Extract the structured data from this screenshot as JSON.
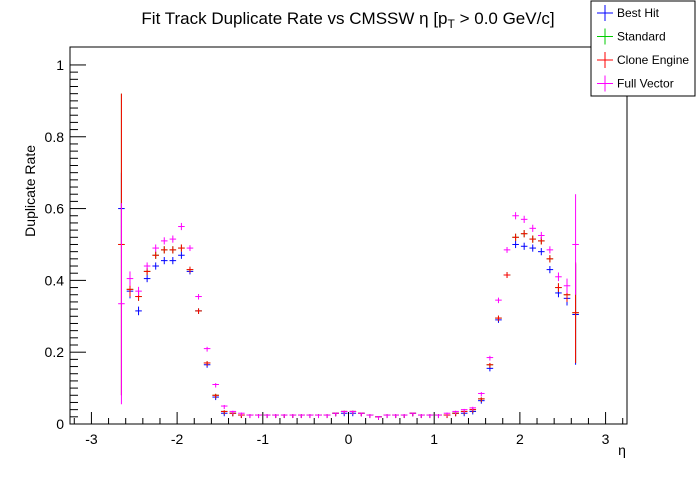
{
  "chart_data": {
    "type": "scatter",
    "title": {
      "prefix": "Fit Track Duplicate Rate vs CMSSW η [p",
      "subscript": "T",
      "suffix": " > 0.0 GeV/c]"
    },
    "xlabel": "η",
    "ylabel": "Duplicate Rate",
    "xlim": [
      -3.25,
      3.25
    ],
    "ylim": [
      0,
      1.05
    ],
    "xticks": [
      -3,
      -2,
      -1,
      0,
      1,
      2,
      3
    ],
    "yticks": [
      0,
      0.2,
      0.4,
      0.6,
      0.8,
      1
    ],
    "xtick_labels": [
      "-3",
      "-2",
      "-1",
      "0",
      "1",
      "2",
      "3"
    ],
    "ytick_labels": [
      "0",
      "0.2",
      "0.4",
      "0.6",
      "0.8",
      "1"
    ],
    "grid": false,
    "legend_position": "top-right",
    "bin_width": 0.1,
    "x": [
      -2.65,
      -2.55,
      -2.45,
      -2.35,
      -2.25,
      -2.15,
      -2.05,
      -1.95,
      -1.85,
      -1.75,
      -1.65,
      -1.55,
      -1.45,
      -1.35,
      -1.25,
      -1.15,
      -1.05,
      -0.95,
      -0.85,
      -0.75,
      -0.65,
      -0.55,
      -0.45,
      -0.35,
      -0.25,
      -0.15,
      -0.05,
      0.05,
      0.15,
      0.25,
      0.35,
      0.45,
      0.55,
      0.65,
      0.75,
      0.85,
      0.95,
      1.05,
      1.15,
      1.25,
      1.35,
      1.45,
      1.55,
      1.65,
      1.75,
      1.85,
      1.95,
      2.05,
      2.15,
      2.25,
      2.35,
      2.45,
      2.55,
      2.65
    ],
    "series": [
      {
        "name": "Best Hit",
        "color": "#0000ff",
        "values": [
          0.6,
          0.37,
          0.315,
          0.405,
          0.44,
          0.455,
          0.455,
          0.47,
          0.425,
          0.315,
          0.165,
          0.075,
          0.03,
          0.03,
          0.025,
          0.025,
          0.025,
          0.025,
          0.025,
          0.025,
          0.025,
          0.025,
          0.025,
          0.025,
          0.025,
          0.03,
          0.03,
          0.03,
          0.03,
          0.025,
          0.02,
          0.025,
          0.025,
          0.025,
          0.03,
          0.025,
          0.025,
          0.025,
          0.025,
          0.03,
          0.03,
          0.035,
          0.065,
          0.155,
          0.29,
          0.415,
          0.5,
          0.495,
          0.49,
          0.48,
          0.43,
          0.365,
          0.35,
          0.305
        ],
        "errors": [
          0.1,
          0.02,
          0.012,
          0.01,
          0.01,
          0.01,
          0.01,
          0.01,
          0.008,
          0.007,
          0.005,
          0.004,
          0.003,
          0.002,
          0.002,
          0.002,
          0.002,
          0.002,
          0.002,
          0.002,
          0.002,
          0.002,
          0.002,
          0.002,
          0.002,
          0.002,
          0.002,
          0.002,
          0.002,
          0.002,
          0.002,
          0.002,
          0.002,
          0.002,
          0.002,
          0.002,
          0.002,
          0.002,
          0.002,
          0.002,
          0.002,
          0.003,
          0.004,
          0.005,
          0.007,
          0.008,
          0.01,
          0.01,
          0.01,
          0.01,
          0.01,
          0.012,
          0.02,
          0.14
        ]
      },
      {
        "name": "Standard",
        "color": "#00cc00",
        "values": [
          0.5,
          0.375,
          0.355,
          0.425,
          0.47,
          0.485,
          0.485,
          0.49,
          0.43,
          0.315,
          0.17,
          0.08,
          0.035,
          0.03,
          0.025,
          0.025,
          0.025,
          0.025,
          0.025,
          0.025,
          0.025,
          0.025,
          0.025,
          0.025,
          0.025,
          0.03,
          0.035,
          0.035,
          0.03,
          0.025,
          0.02,
          0.025,
          0.025,
          0.025,
          0.03,
          0.025,
          0.025,
          0.025,
          0.025,
          0.03,
          0.035,
          0.04,
          0.07,
          0.165,
          0.295,
          0.415,
          0.52,
          0.53,
          0.515,
          0.51,
          0.46,
          0.38,
          0.36,
          0.31
        ],
        "errors": [
          0.42,
          0.02,
          0.012,
          0.01,
          0.01,
          0.01,
          0.01,
          0.01,
          0.008,
          0.007,
          0.005,
          0.004,
          0.003,
          0.002,
          0.002,
          0.002,
          0.002,
          0.002,
          0.002,
          0.002,
          0.002,
          0.002,
          0.002,
          0.002,
          0.002,
          0.002,
          0.002,
          0.002,
          0.002,
          0.002,
          0.002,
          0.002,
          0.002,
          0.002,
          0.002,
          0.002,
          0.002,
          0.002,
          0.002,
          0.002,
          0.002,
          0.003,
          0.004,
          0.005,
          0.007,
          0.008,
          0.01,
          0.01,
          0.01,
          0.01,
          0.01,
          0.012,
          0.02,
          0.14
        ]
      },
      {
        "name": "Clone Engine",
        "color": "#ff0000",
        "values": [
          0.5,
          0.375,
          0.355,
          0.425,
          0.47,
          0.485,
          0.485,
          0.49,
          0.43,
          0.315,
          0.17,
          0.08,
          0.035,
          0.03,
          0.025,
          0.025,
          0.025,
          0.025,
          0.025,
          0.025,
          0.025,
          0.025,
          0.025,
          0.025,
          0.025,
          0.03,
          0.035,
          0.035,
          0.03,
          0.025,
          0.02,
          0.025,
          0.025,
          0.025,
          0.03,
          0.025,
          0.025,
          0.025,
          0.025,
          0.03,
          0.035,
          0.04,
          0.07,
          0.165,
          0.295,
          0.415,
          0.52,
          0.53,
          0.515,
          0.51,
          0.46,
          0.38,
          0.36,
          0.31
        ],
        "errors": [
          0.42,
          0.02,
          0.012,
          0.01,
          0.01,
          0.01,
          0.01,
          0.01,
          0.008,
          0.007,
          0.005,
          0.004,
          0.003,
          0.002,
          0.002,
          0.002,
          0.002,
          0.002,
          0.002,
          0.002,
          0.002,
          0.002,
          0.002,
          0.002,
          0.002,
          0.002,
          0.002,
          0.002,
          0.002,
          0.002,
          0.002,
          0.002,
          0.002,
          0.002,
          0.002,
          0.002,
          0.002,
          0.002,
          0.002,
          0.002,
          0.002,
          0.003,
          0.004,
          0.005,
          0.007,
          0.008,
          0.01,
          0.01,
          0.01,
          0.01,
          0.01,
          0.012,
          0.02,
          0.14
        ]
      },
      {
        "name": "Full Vector",
        "color": "#ff00ff",
        "values": [
          0.335,
          0.405,
          0.37,
          0.44,
          0.49,
          0.51,
          0.515,
          0.55,
          0.49,
          0.355,
          0.21,
          0.11,
          0.05,
          0.035,
          0.03,
          0.025,
          0.025,
          0.025,
          0.025,
          0.025,
          0.025,
          0.025,
          0.025,
          0.025,
          0.025,
          0.03,
          0.035,
          0.035,
          0.03,
          0.025,
          0.02,
          0.025,
          0.025,
          0.025,
          0.03,
          0.025,
          0.025,
          0.025,
          0.03,
          0.035,
          0.04,
          0.045,
          0.085,
          0.185,
          0.345,
          0.485,
          0.58,
          0.57,
          0.545,
          0.525,
          0.485,
          0.41,
          0.385,
          0.5
        ],
        "errors": [
          0.28,
          0.02,
          0.012,
          0.01,
          0.01,
          0.01,
          0.01,
          0.01,
          0.008,
          0.007,
          0.005,
          0.004,
          0.003,
          0.002,
          0.002,
          0.002,
          0.002,
          0.002,
          0.002,
          0.002,
          0.002,
          0.002,
          0.002,
          0.002,
          0.002,
          0.002,
          0.002,
          0.002,
          0.002,
          0.002,
          0.002,
          0.002,
          0.002,
          0.002,
          0.002,
          0.002,
          0.002,
          0.002,
          0.002,
          0.002,
          0.002,
          0.003,
          0.004,
          0.005,
          0.007,
          0.008,
          0.01,
          0.01,
          0.01,
          0.01,
          0.01,
          0.012,
          0.02,
          0.14
        ]
      }
    ]
  }
}
